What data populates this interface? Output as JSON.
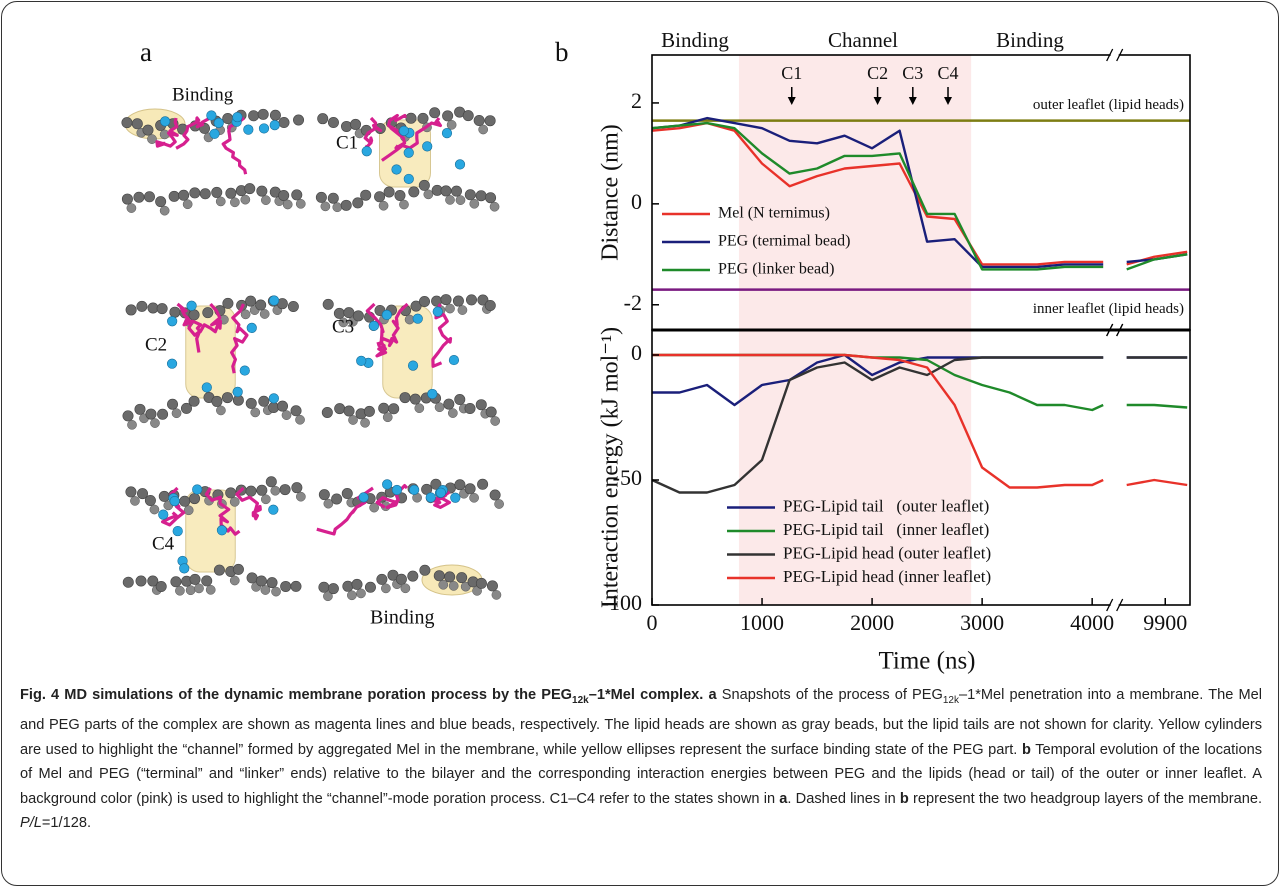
{
  "panel_a": {
    "label": "a",
    "snapshot_labels": [
      "Binding",
      "C1",
      "C2",
      "C3",
      "C4",
      "Binding"
    ]
  },
  "panel_b_label": "b",
  "chart_data": [
    {
      "type": "line",
      "ylabel": "Distance (nm)",
      "phase_labels": [
        "Binding",
        "Channel",
        "Binding"
      ],
      "xlim": [
        0,
        10125
      ],
      "xbreak": [
        4150,
        9495
      ],
      "ylim": [
        -2.5,
        2.95
      ],
      "yticks": [
        -2,
        0,
        2
      ],
      "highlight": [
        790,
        2900
      ],
      "x": [
        0,
        250,
        500,
        750,
        1000,
        1250,
        1500,
        1750,
        2000,
        2250,
        2500,
        2750,
        3000,
        3250,
        3500,
        3750,
        4000,
        4100,
        4800,
        9550,
        9800,
        10100
      ],
      "series": [
        {
          "name": "Mel (N ternimus)",
          "color": "#e8322a",
          "values": [
            1.45,
            1.5,
            1.6,
            1.45,
            0.8,
            0.35,
            0.55,
            0.7,
            0.75,
            0.8,
            -0.25,
            -0.3,
            -1.2,
            -1.2,
            -1.2,
            -1.15,
            -1.15,
            -1.15,
            null,
            -1.2,
            -1.05,
            -0.95
          ]
        },
        {
          "name": "PEG (ternimal bead)",
          "color": "#1a1f7a",
          "values": [
            1.5,
            1.55,
            1.7,
            1.6,
            1.5,
            1.25,
            1.2,
            1.35,
            1.1,
            1.45,
            -0.75,
            -0.7,
            -1.25,
            -1.25,
            -1.25,
            -1.2,
            -1.2,
            -1.2,
            null,
            -1.15,
            -1.1,
            -1.0
          ]
        },
        {
          "name": "PEG (linker bead)",
          "color": "#1f8a2a",
          "values": [
            1.5,
            1.55,
            1.6,
            1.5,
            1.0,
            0.6,
            0.7,
            0.95,
            0.95,
            1.0,
            -0.2,
            -0.2,
            -1.3,
            -1.3,
            -1.3,
            -1.25,
            -1.25,
            -1.25,
            null,
            -1.3,
            -1.1,
            -1.0
          ]
        }
      ],
      "reference_lines": [
        {
          "label": "outer leaflet (lipid heads)",
          "value": 1.65,
          "color": "#7d7d12"
        },
        {
          "label": "inner leaflet (lipid heads)",
          "value": -1.7,
          "color": "#7a1a80"
        }
      ],
      "annotations": [
        {
          "label": "C1",
          "x": 1270
        },
        {
          "label": "C2",
          "x": 2050
        },
        {
          "label": "C3",
          "x": 2370
        },
        {
          "label": "C4",
          "x": 2690
        }
      ],
      "legend": "lower left"
    },
    {
      "type": "line",
      "ylabel": "Interaction energy (kJ mol⁻¹)",
      "xlabel": "Time (ns)",
      "xlim": [
        0,
        10125
      ],
      "xbreak": [
        4150,
        9495
      ],
      "ylim": [
        -100,
        10
      ],
      "yticks": [
        -100,
        -50,
        0
      ],
      "xticks": [
        0,
        1000,
        2000,
        3000,
        4000,
        9900
      ],
      "highlight": [
        790,
        2900
      ],
      "x": [
        0,
        250,
        500,
        750,
        1000,
        1250,
        1500,
        1750,
        2000,
        2250,
        2500,
        2750,
        3000,
        3250,
        3500,
        3750,
        4000,
        4100,
        4800,
        9550,
        9800,
        10100
      ],
      "series": [
        {
          "name": "PEG-Lipid tail   (outer leaflet)",
          "color": "#1a1f7a",
          "values": [
            -15,
            -15,
            -12,
            -20,
            -12,
            -10,
            -3,
            0,
            -8,
            -3,
            -1,
            -1,
            -1,
            -1,
            -1,
            -1,
            -1,
            -1,
            null,
            -1,
            -1,
            -1
          ]
        },
        {
          "name": "PEG-Lipid tail   (inner leaflet)",
          "color": "#1f8a2a",
          "values": [
            0,
            0,
            0,
            0,
            0,
            0,
            0,
            0,
            -1,
            -1,
            -2,
            -8,
            -12,
            -15,
            -20,
            -20,
            -22,
            -20,
            null,
            -20,
            -20,
            -21
          ]
        },
        {
          "name": "PEG-Lipid head (outer leaflet)",
          "color": "#333333",
          "values": [
            -50,
            -55,
            -55,
            -52,
            -42,
            -10,
            -5,
            -3,
            -10,
            -5,
            -8,
            -2,
            -1,
            -1,
            -1,
            -1,
            -1,
            -1,
            null,
            -1,
            -1,
            -1
          ]
        },
        {
          "name": "PEG-Lipid head (inner leaflet)",
          "color": "#e8322a",
          "values": [
            0,
            0,
            0,
            0,
            0,
            0,
            0,
            0,
            -1,
            -2,
            -5,
            -20,
            -45,
            -53,
            -53,
            -52,
            -52,
            -50,
            null,
            -52,
            -50,
            -52
          ]
        }
      ],
      "legend": "lower center"
    }
  ],
  "caption": {
    "title": [
      "Fig. 4 MD simulations of the dynamic membrane poration process by the PEG",
      "12k",
      "–1*Mel complex."
    ],
    "part_a": [
      "a",
      "Snapshots of the process of PEG",
      "12k",
      "–1*Mel penetration into a membrane. The Mel and PEG parts of the complex are shown as magenta lines and blue beads, respectively. The lipid heads are shown as gray beads, but the lipid tails are not shown for clarity. Yellow cylinders are used to highlight the “channel” formed by aggregated Mel in the membrane, while yellow ellipses represent the surface binding state of the PEG part."
    ],
    "part_b": [
      "b",
      "Temporal evolution of the locations of Mel and PEG (“terminal” and “linker” ends) relative to the bilayer and the corresponding interaction energies between PEG and the lipids (head or tail) of the outer or inner leaflet. A background color (pink) is used to highlight the “channel”-mode poration process. C1–C4 refer to the states shown in",
      "a",
      ". Dashed lines in",
      "b",
      "represent the two headgroup layers of the membrane.",
      "P/L",
      "=1/128."
    ]
  }
}
